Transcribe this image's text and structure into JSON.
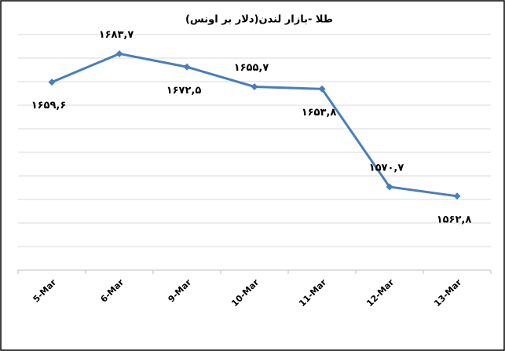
{
  "chart_data": {
    "type": "line",
    "title": "طلا -بازار لندن(دلار بر اونس)",
    "categories": [
      "5-Mar",
      "6-Mar",
      "9-Mar",
      "10-Mar",
      "11-Mar",
      "12-Mar",
      "13-Mar"
    ],
    "series": [
      {
        "name": "طلا",
        "color": "#4a7ebb",
        "values": [
          1659.6,
          1683.7,
          1672.5,
          1655.7,
          1653.8,
          1570.7,
          1562.8
        ],
        "value_labels": [
          "۱۶۵۹,۶",
          "۱۶۸۳,۷",
          "۱۶۷۲,۵",
          "۱۶۵۵,۷",
          "۱۶۵۳,۸",
          "۱۵۷۰,۷",
          "۱۵۶۲,۸"
        ]
      }
    ],
    "ylim": [
      1500,
      1700
    ],
    "yticks": [
      1500,
      1520,
      1540,
      1560,
      1580,
      1600,
      1620,
      1640,
      1660,
      1680,
      1700
    ],
    "grid": true
  }
}
